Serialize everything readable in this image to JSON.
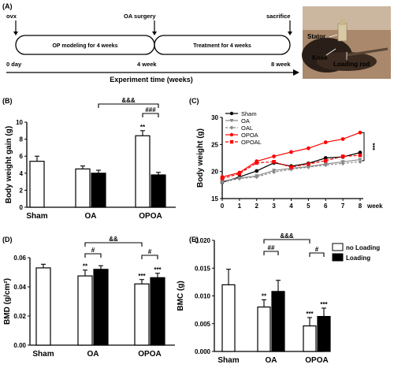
{
  "panel_a": {
    "label": "(A)",
    "events": [
      "ovx",
      "OA surgery",
      "sacrifice"
    ],
    "phases": [
      "OP modeling for 4 weeks",
      "Treatment for 4 weeks"
    ],
    "times": [
      "0 day",
      "4 week",
      "8 week"
    ],
    "axis_label": "Experiment time (weeks)",
    "photo_labels": [
      "Stator",
      "Knee",
      "Loading rod"
    ]
  },
  "chart_data": [
    {
      "panel": "(B)",
      "type": "bar",
      "ylabel": "Body weight gain (g)",
      "ylim": [
        0,
        10
      ],
      "yticks": [
        "0",
        "2",
        "4",
        "6",
        "8",
        "10"
      ],
      "categories": [
        "Sham",
        "OA",
        "OPOA"
      ],
      "bars": [
        {
          "group": "Sham",
          "fill": "white",
          "value": 5.4,
          "err": 0.6
        },
        {
          "group": "OA",
          "fill": "white",
          "value": 4.5,
          "err": 0.35
        },
        {
          "group": "OA",
          "fill": "black",
          "value": 4.0,
          "err": 0.35
        },
        {
          "group": "OPOA",
          "fill": "white",
          "value": 8.4,
          "err": 0.6,
          "sig": "**"
        },
        {
          "group": "OPOA",
          "fill": "black",
          "value": 3.8,
          "err": 0.3
        }
      ],
      "brackets": [
        {
          "from": 2,
          "to": 4,
          "text": "&&&"
        },
        {
          "from": 3,
          "to": 4,
          "text": "###"
        }
      ]
    },
    {
      "panel": "(C)",
      "type": "line",
      "ylabel": "Body weight (g)",
      "xlabel": "week",
      "ylim": [
        15,
        30
      ],
      "yticks": [
        "15",
        "20",
        "25",
        "30"
      ],
      "x": [
        0,
        1,
        2,
        3,
        4,
        5,
        6,
        7,
        8
      ],
      "series": [
        {
          "name": "Sham",
          "color": "#000000",
          "dash": "",
          "marker": "circle",
          "values": [
            18.0,
            19.0,
            20.1,
            21.6,
            21.0,
            21.5,
            22.5,
            22.7,
            23.5
          ]
        },
        {
          "name": "OA",
          "color": "#888888",
          "dash": "",
          "marker": "triangle",
          "values": [
            18.2,
            18.8,
            19.2,
            20.2,
            20.6,
            20.9,
            21.4,
            21.8,
            22.2
          ]
        },
        {
          "name": "OAL",
          "color": "#888888",
          "dash": "3,2",
          "marker": "diamond",
          "values": [
            18.0,
            18.7,
            19.0,
            19.9,
            20.4,
            20.8,
            21.2,
            21.5,
            21.8
          ]
        },
        {
          "name": "OPOA",
          "color": "#ff0000",
          "dash": "",
          "marker": "circle",
          "values": [
            19.0,
            19.8,
            21.9,
            22.8,
            23.6,
            24.3,
            25.4,
            26.0,
            27.2
          ]
        },
        {
          "name": "OPOAL",
          "color": "#ff0000",
          "dash": "4,2",
          "marker": "square",
          "values": [
            18.7,
            19.6,
            21.6,
            21.8,
            20.8,
            21.4,
            22.0,
            22.8,
            23.0
          ]
        }
      ],
      "annotation": "***"
    },
    {
      "panel": "(D)",
      "type": "bar",
      "ylabel": "BMD (g/cm²)",
      "ylim": [
        0,
        0.06
      ],
      "yticks": [
        "0.00",
        "0.02",
        "0.04",
        "0.06"
      ],
      "categories": [
        "Sham",
        "OA",
        "OPOA"
      ],
      "bars": [
        {
          "group": "Sham",
          "fill": "white",
          "value": 0.053,
          "err": 0.0025
        },
        {
          "group": "OA",
          "fill": "white",
          "value": 0.0475,
          "err": 0.004,
          "sig": "**"
        },
        {
          "group": "OA",
          "fill": "black",
          "value": 0.052,
          "err": 0.0025
        },
        {
          "group": "OPOA",
          "fill": "white",
          "value": 0.042,
          "err": 0.003,
          "sig": "***"
        },
        {
          "group": "OPOA",
          "fill": "black",
          "value": 0.0463,
          "err": 0.003,
          "sig": "***"
        }
      ],
      "brackets": [
        {
          "from": 1,
          "to": 3,
          "text": "&&"
        },
        {
          "from": 1,
          "to": 2,
          "text": "#"
        },
        {
          "from": 3,
          "to": 4,
          "text": "#"
        }
      ]
    },
    {
      "panel": "(E)",
      "type": "bar",
      "ylabel": "BMC (g)",
      "ylim": [
        0,
        0.02
      ],
      "yticks": [
        "0.000",
        "0.005",
        "0.010",
        "0.015",
        "0.020"
      ],
      "categories": [
        "Sham",
        "OA",
        "OPOA"
      ],
      "bars": [
        {
          "group": "Sham",
          "fill": "white",
          "value": 0.012,
          "err": 0.0028
        },
        {
          "group": "OA",
          "fill": "white",
          "value": 0.008,
          "err": 0.0013,
          "sig": "**"
        },
        {
          "group": "OA",
          "fill": "black",
          "value": 0.0108,
          "err": 0.002
        },
        {
          "group": "OPOA",
          "fill": "white",
          "value": 0.0046,
          "err": 0.0015,
          "sig": "***"
        },
        {
          "group": "OPOA",
          "fill": "black",
          "value": 0.0063,
          "err": 0.0015,
          "sig": "***"
        }
      ],
      "brackets": [
        {
          "from": 1,
          "to": 3,
          "text": "&&&"
        },
        {
          "from": 1,
          "to": 2,
          "text": "##"
        },
        {
          "from": 3,
          "to": 4,
          "text": "#"
        }
      ],
      "legend": [
        "no Loading",
        "Loading"
      ]
    }
  ]
}
